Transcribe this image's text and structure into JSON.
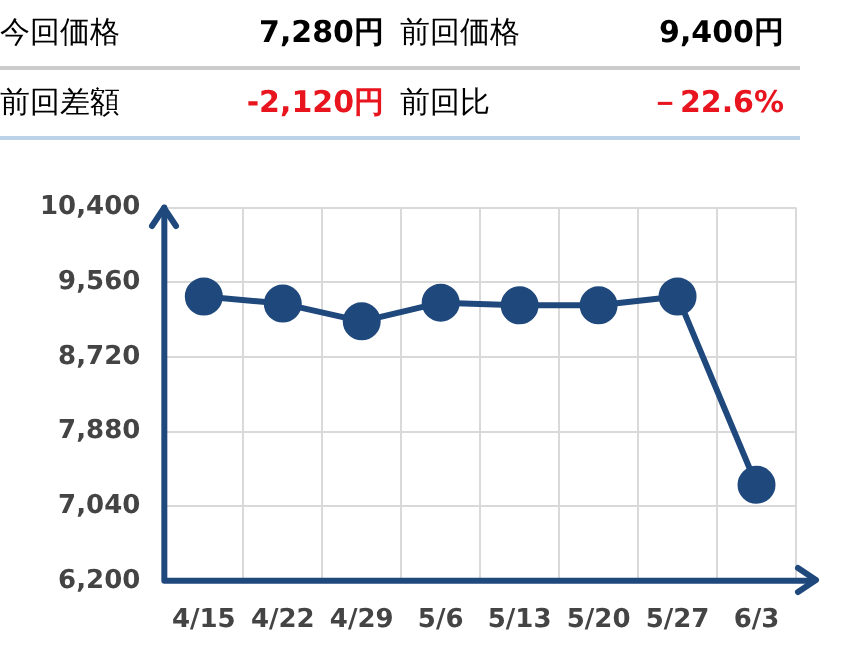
{
  "chart_data": {
    "type": "line",
    "annotations": [
      "今回価格",
      "7,280円",
      "前回価格",
      "9,400円",
      "前回差額",
      "-2,120円",
      "前回比",
      "－22.6%"
    ],
    "categories": [
      "4/15",
      "4/22",
      "4/29",
      "5/6",
      "5/13",
      "5/20",
      "5/27",
      "6/3"
    ],
    "series": [
      {
        "color": "#1f487c",
        "values": [
          9400,
          9320,
          9120,
          9330,
          9300,
          9300,
          9400,
          7280
        ]
      }
    ],
    "ylim": [
      6200,
      10400
    ],
    "yticks": [
      {
        "value": 6200,
        "label": "6,200"
      },
      {
        "value": 7040,
        "label": "7,040"
      },
      {
        "value": 7880,
        "label": "7,880"
      },
      {
        "value": 8720,
        "label": "8,720"
      },
      {
        "value": 9560,
        "label": "9,560"
      },
      {
        "value": 10400,
        "label": "10,400"
      }
    ],
    "grid": true,
    "legend": false,
    "marker": "circle",
    "line_style": "solid"
  }
}
